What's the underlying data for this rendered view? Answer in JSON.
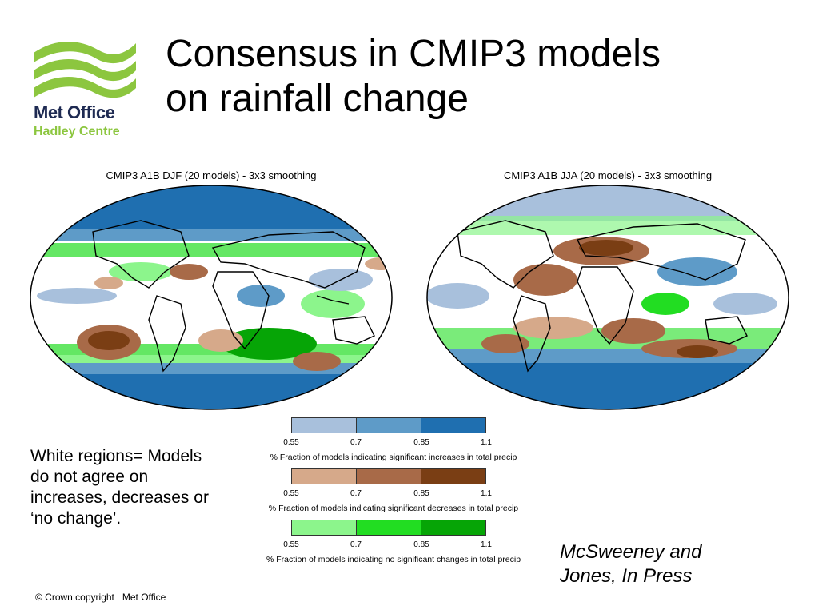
{
  "header": {
    "logo_line1": "Met Office",
    "logo_line2": "Hadley Centre",
    "title_line1": "Consensus in CMIP3 models",
    "title_line2": "on rainfall change"
  },
  "maps": [
    {
      "title": "CMIP3 A1B DJF (20 models) - 3x3 smoothing"
    },
    {
      "title": "CMIP3 A1B JJA (20 models) - 3x3 smoothing"
    }
  ],
  "legend": [
    {
      "ticks": [
        "0.55",
        "0.7",
        "0.85",
        "1.1"
      ],
      "caption": "% Fraction of models indicating significant increases in total precip",
      "colors": [
        "#a8c0dc",
        "#5e9bc8",
        "#1f6fb0"
      ]
    },
    {
      "ticks": [
        "0.55",
        "0.7",
        "0.85",
        "1.1"
      ],
      "caption": "% Fraction of models indicating significant decreases in total precip",
      "colors": [
        "#d6a98a",
        "#a86a48",
        "#7a3e14"
      ]
    },
    {
      "ticks": [
        "0.55",
        "0.7",
        "0.85",
        "1.1"
      ],
      "caption": "% Fraction of models indicating no significant changes in total precip",
      "colors": [
        "#8cf58c",
        "#22dd22",
        "#06a506"
      ]
    }
  ],
  "note": "White regions= Models do not agree on increases, decreases or ‘no change’.",
  "citation_line1": "McSweeney and",
  "citation_line2": "Jones, In Press",
  "footer": {
    "copyright": "© Crown copyright   Met Office"
  }
}
